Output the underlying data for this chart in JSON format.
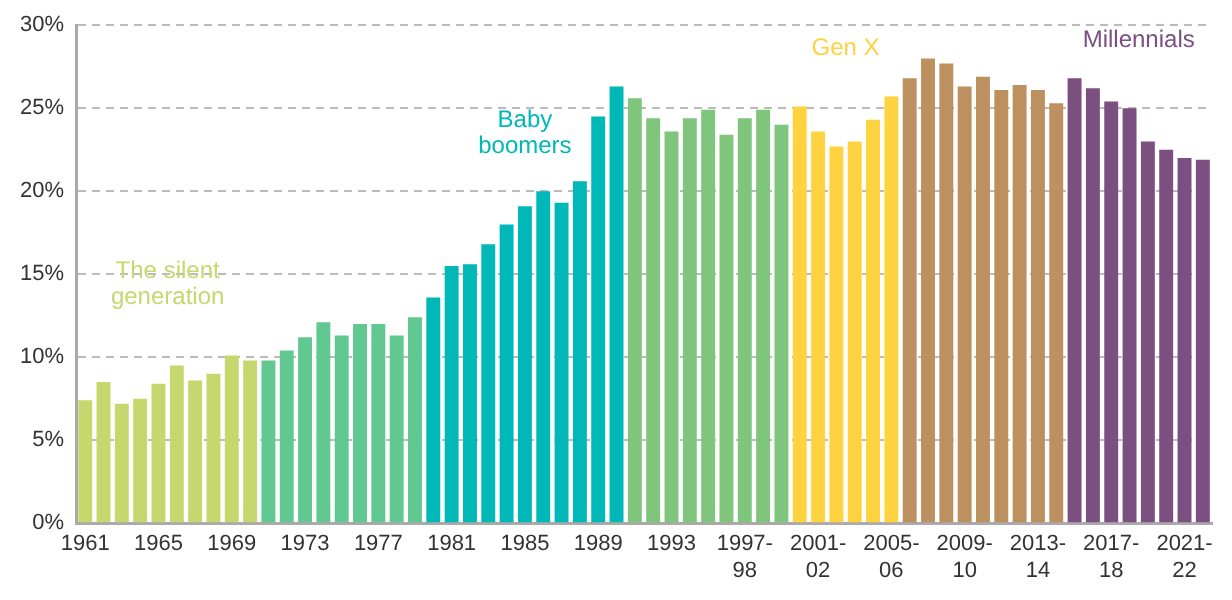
{
  "chart_data": {
    "type": "bar",
    "categories": [
      "1961",
      null,
      null,
      null,
      "1965",
      null,
      null,
      null,
      "1969",
      null,
      null,
      null,
      "1973",
      null,
      null,
      null,
      "1977",
      null,
      null,
      null,
      "1981",
      null,
      null,
      null,
      "1985",
      null,
      null,
      null,
      "1989",
      null,
      null,
      null,
      "1993",
      null,
      null,
      null,
      "1997-98",
      null,
      null,
      null,
      "2001-02",
      null,
      null,
      null,
      "2005-06",
      null,
      null,
      null,
      "2009-10",
      null,
      null,
      null,
      "2013-14",
      null,
      null,
      null,
      "2017-18",
      null,
      null,
      null,
      "2021-22",
      null
    ],
    "values": [
      7.4,
      8.5,
      7.2,
      7.5,
      8.4,
      9.5,
      8.6,
      9.0,
      10.1,
      9.8,
      9.8,
      10.4,
      11.2,
      12.1,
      11.3,
      12.0,
      12.0,
      11.3,
      12.4,
      13.6,
      15.5,
      15.6,
      16.8,
      18.0,
      19.1,
      20.0,
      19.3,
      20.6,
      24.5,
      26.3,
      25.6,
      24.4,
      23.6,
      24.4,
      24.9,
      23.4,
      24.4,
      24.9,
      24.0,
      25.1,
      23.6,
      22.7,
      23.0,
      24.3,
      25.7,
      26.8,
      28.0,
      27.7,
      26.3,
      26.9,
      26.1,
      26.4,
      26.1,
      25.3,
      26.8,
      26.2,
      25.4,
      25.0,
      23.0,
      22.5,
      22.0,
      21.9
    ],
    "colors": [
      "#c5d86d",
      "#c5d86d",
      "#c5d86d",
      "#c5d86d",
      "#c5d86d",
      "#c5d86d",
      "#c5d86d",
      "#c5d86d",
      "#c5d86d",
      "#c5d86d",
      "#62c892",
      "#62c892",
      "#62c892",
      "#62c892",
      "#62c892",
      "#62c892",
      "#62c892",
      "#62c892",
      "#62c892",
      "#00b8b8",
      "#00b8b8",
      "#00b8b8",
      "#00b8b8",
      "#00b8b8",
      "#00b8b8",
      "#00b8b8",
      "#00b8b8",
      "#00b8b8",
      "#00b8b8",
      "#00b8b8",
      "#80c57c",
      "#80c57c",
      "#80c57c",
      "#80c57c",
      "#80c57c",
      "#80c57c",
      "#80c57c",
      "#80c57c",
      "#80c57c",
      "#ffd23f",
      "#ffd23f",
      "#ffd23f",
      "#ffd23f",
      "#ffd23f",
      "#ffd23f",
      "#bd915f",
      "#bd915f",
      "#bd915f",
      "#bd915f",
      "#bd915f",
      "#bd915f",
      "#bd915f",
      "#bd915f",
      "#bd915f",
      "#7b4f7f",
      "#7b4f7f",
      "#7b4f7f",
      "#7b4f7f",
      "#7b4f7f",
      "#7b4f7f",
      "#7b4f7f",
      "#7b4f7f"
    ],
    "ylim": [
      0,
      30
    ],
    "yticks": [
      {
        "value": 0,
        "label": "0%"
      },
      {
        "value": 5,
        "label": "5%"
      },
      {
        "value": 10,
        "label": "10%"
      },
      {
        "value": 15,
        "label": "15%"
      },
      {
        "value": 20,
        "label": "20%"
      },
      {
        "value": 25,
        "label": "25%"
      },
      {
        "value": 30,
        "label": "30%"
      }
    ],
    "grid": "y",
    "legend": false,
    "annotations": [
      "The silent generation",
      "Baby boomers",
      "Gen X",
      "Millennials"
    ]
  }
}
